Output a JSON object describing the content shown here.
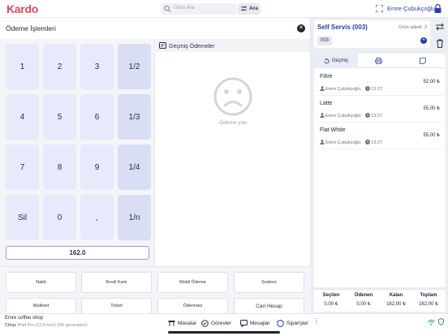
{
  "app": {
    "logo": "Kardo",
    "user": "Emre Çubukçoğlu"
  },
  "search": {
    "placeholder": "Ürün Ara",
    "button": "Ara"
  },
  "payment": {
    "title": "Ödeme İşlemleri",
    "keys": [
      "1",
      "2",
      "3",
      "1/2",
      "4",
      "5",
      "6",
      "1/3",
      "7",
      "8",
      "9",
      "1/4",
      "Sil",
      "0",
      ",",
      "1/n"
    ],
    "amount": "162.0",
    "past_title": "Geçmiş Ödemeler",
    "empty_text": "-Ödeme yok-",
    "methods": [
      "Nakit",
      "Kredi Kartı",
      "Mobil Ödeme",
      "Sodexo",
      "Multinet",
      "Ticket",
      "Ödenmez",
      "Cari Hesap"
    ]
  },
  "order": {
    "title": "Self Servis (003)",
    "item_count_label": "Ürün adedi: 3",
    "order_no": "003",
    "tabs": [
      "Geçmiş",
      "",
      ""
    ],
    "items": [
      {
        "name": "Filtre",
        "user": "Emre Çubukçoğlu",
        "time": "13:27",
        "price": "52,00 ₺"
      },
      {
        "name": "Latte",
        "user": "Emre Çubukçoğlu",
        "time": "13:27",
        "price": "55,00 ₺"
      },
      {
        "name": "Flat White",
        "user": "Emre Çubukçoğlu",
        "time": "13:27",
        "price": "55,00 ₺"
      }
    ],
    "totals": [
      {
        "label": "Seçilen",
        "value": "0,00 ₺"
      },
      {
        "label": "Ödenen",
        "value": "0,00 ₺"
      },
      {
        "label": "Kalan",
        "value": "162,00 ₺"
      },
      {
        "label": "Toplam",
        "value": "162,00 ₺"
      }
    ]
  },
  "footer": {
    "shop": "Emre coffee shop",
    "device_label": "Cihaz",
    "device": "iPad Pro (12.9-inch) (6th generation)",
    "nav": [
      "Masalar",
      "Görevler",
      "Mesajlar",
      "Siparişler"
    ],
    "more": "⋮"
  },
  "colors": {
    "brand": "#e0475b",
    "accent": "#2b3ea6",
    "key": "#e7eafa"
  }
}
